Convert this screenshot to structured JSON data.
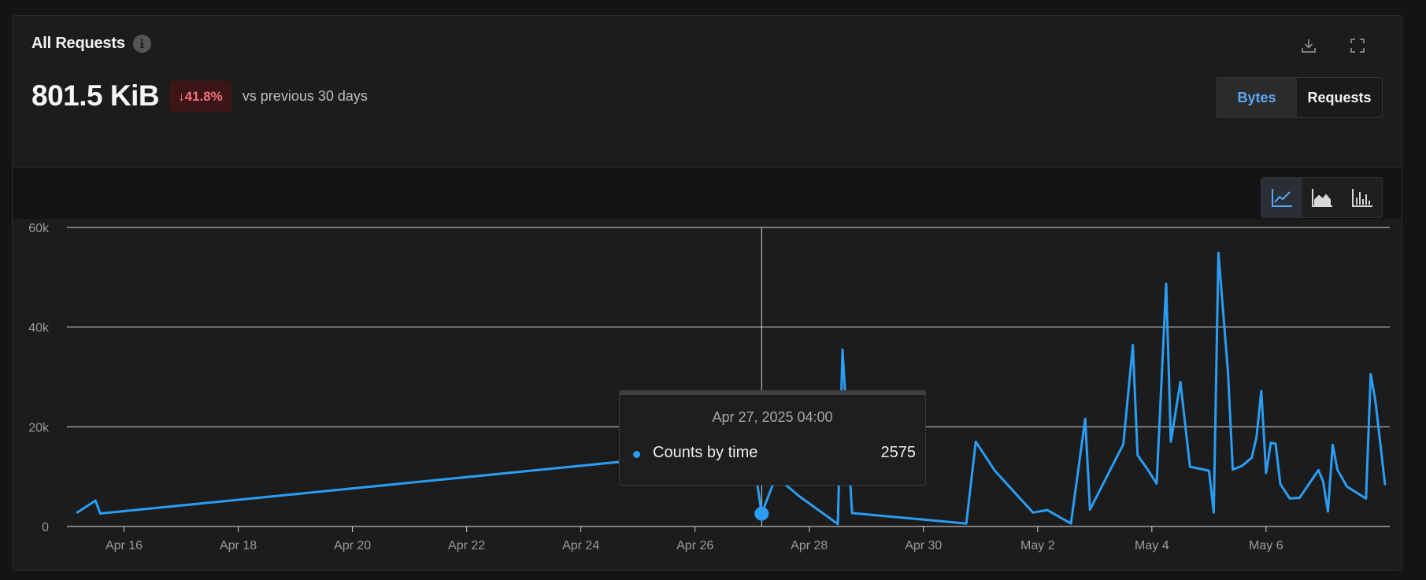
{
  "panel": {
    "title": "All Requests",
    "info_icon": "info-icon",
    "value": "801.5 KiB",
    "delta": "↓41.8%",
    "delta_color": "#f2707a",
    "compare_text": "vs previous 30 days",
    "download_icon": "download-icon",
    "fullscreen_icon": "fullscreen-icon",
    "toggle": {
      "options": [
        "Bytes",
        "Requests"
      ],
      "selected": "Bytes"
    },
    "chart_types": [
      "line-chart-icon",
      "area-chart-icon",
      "bar-chart-icon"
    ],
    "chart_type_selected": "line-chart-icon"
  },
  "tooltip": {
    "time": "Apr 27, 2025 04:00",
    "series_label": "Counts by time",
    "value": "2575"
  },
  "colors": {
    "series": "#2a9df4",
    "accent": "#5aa8f5",
    "background": "#1c1c1c"
  },
  "chart_data": {
    "type": "line",
    "xlabel": "",
    "ylabel": "",
    "x_range": [
      "2025-04-15T00:00",
      "2025-05-08T04:00"
    ],
    "ylim": [
      0,
      60000
    ],
    "y_ticks": [
      0,
      20000,
      40000,
      60000
    ],
    "y_tick_labels": [
      "0",
      "20k",
      "40k",
      "60k"
    ],
    "x_ticks": [
      "2025-04-16",
      "2025-04-18",
      "2025-04-20",
      "2025-04-22",
      "2025-04-24",
      "2025-04-26",
      "2025-04-28",
      "2025-04-30",
      "2025-05-02",
      "2025-05-04",
      "2025-05-06"
    ],
    "x_tick_labels": [
      "Apr 16",
      "Apr 18",
      "Apr 20",
      "Apr 22",
      "Apr 24",
      "Apr 26",
      "Apr 28",
      "Apr 30",
      "May 2",
      "May 4",
      "May 6"
    ],
    "grid": true,
    "crosshair_x": "2025-04-27T04:00",
    "highlight": {
      "x": "2025-04-27T04:00",
      "y": 2575
    },
    "series": [
      {
        "x": [
          "2025-04-15T04:00",
          "2025-04-15T12:00",
          "2025-04-15T14:00",
          "2025-04-27T00:00",
          "2025-04-27T04:00",
          "2025-04-27T10:00",
          "2025-04-27T20:00",
          "2025-04-28T12:00",
          "2025-04-28T14:00",
          "2025-04-28T18:00",
          "2025-04-28T20:00",
          "2025-04-30T18:00",
          "2025-04-30T22:00",
          "2025-05-01T06:00",
          "2025-05-01T22:00",
          "2025-05-02T04:00",
          "2025-05-02T14:00",
          "2025-05-02T20:00",
          "2025-05-02T22:00",
          "2025-05-03T12:00",
          "2025-05-03T16:00",
          "2025-05-03T18:00",
          "2025-05-03T22:00",
          "2025-05-04T02:00",
          "2025-05-04T06:00",
          "2025-05-04T08:00",
          "2025-05-04T12:00",
          "2025-05-04T16:00",
          "2025-05-05T00:00",
          "2025-05-05T02:00",
          "2025-05-05T04:00",
          "2025-05-05T08:00",
          "2025-05-05T10:00",
          "2025-05-05T14:00",
          "2025-05-05T18:00",
          "2025-05-05T20:00",
          "2025-05-05T22:00",
          "2025-05-06T00:00",
          "2025-05-06T02:00",
          "2025-05-06T04:00",
          "2025-05-06T06:00",
          "2025-05-06T10:00",
          "2025-05-06T12:00",
          "2025-05-06T14:00",
          "2025-05-06T22:00",
          "2025-05-07T00:00",
          "2025-05-07T02:00",
          "2025-05-07T04:00",
          "2025-05-07T06:00",
          "2025-05-07T10:00",
          "2025-05-07T18:00",
          "2025-05-07T20:00",
          "2025-05-07T22:00",
          "2025-05-08T02:00"
        ],
        "values": [
          2700,
          5200,
          2600,
          15600,
          2575,
          10000,
          6000,
          500,
          35500,
          2700,
          2600,
          600,
          17000,
          11200,
          2800,
          3300,
          600,
          21600,
          3400,
          16500,
          36400,
          14300,
          11600,
          8600,
          48700,
          17000,
          29000,
          12000,
          11200,
          2800,
          54900,
          31000,
          11400,
          12200,
          13800,
          18000,
          27200,
          10700,
          16800,
          16600,
          8500,
          5600,
          5700,
          5700,
          11300,
          9000,
          3000,
          16400,
          11400,
          8000,
          5600,
          30600,
          25000,
          8300
        ]
      }
    ]
  }
}
